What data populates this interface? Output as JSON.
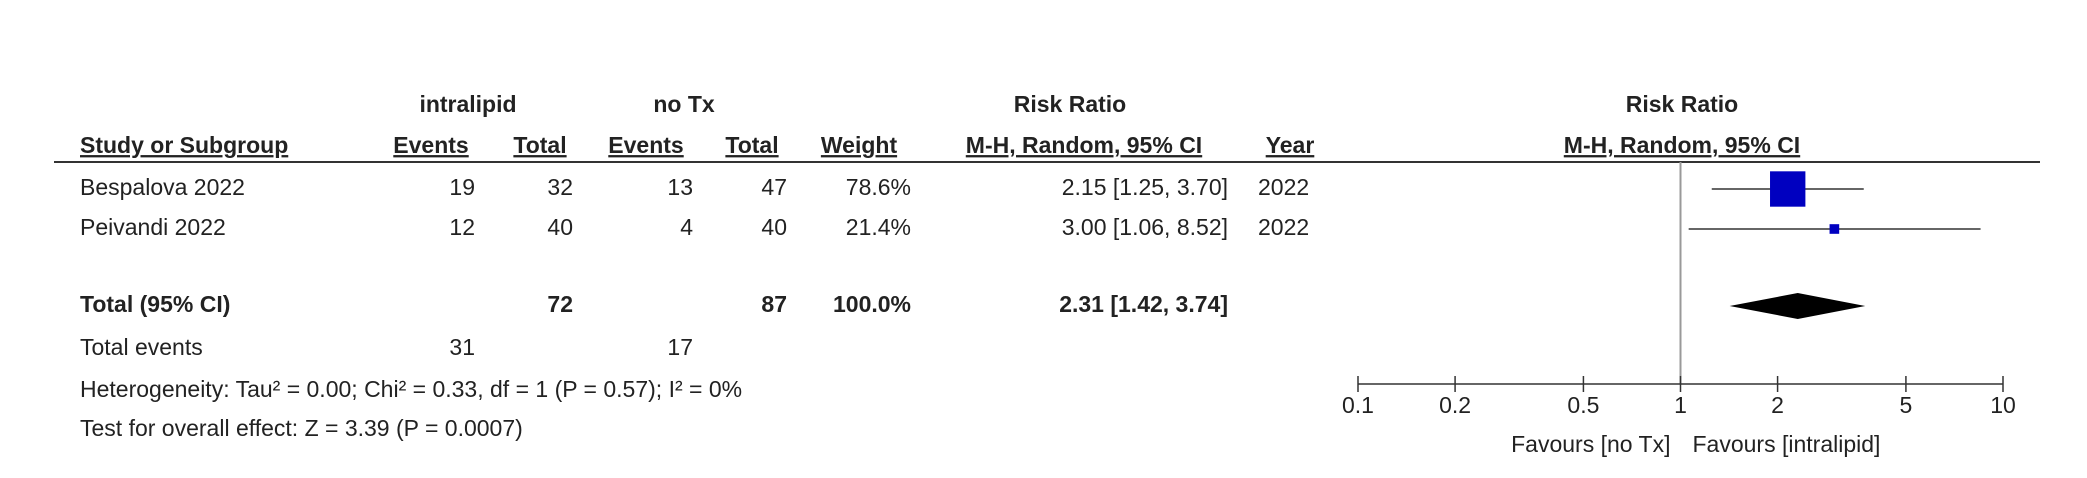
{
  "chart_data": {
    "type": "forest",
    "group_labels": [
      "intralipid",
      "no Tx"
    ],
    "measure": "Risk Ratio",
    "method": "M-H, Random, 95% CI",
    "columns": [
      "Study or Subgroup",
      "Events",
      "Total",
      "Events",
      "Total",
      "Weight",
      "M-H, Random, 95% CI",
      "Year"
    ],
    "studies": [
      {
        "name": "Bespalova 2022",
        "events1": 19,
        "total1": 32,
        "events2": 13,
        "total2": 47,
        "weight": 78.6,
        "weight_label": "78.6%",
        "rr": 2.15,
        "lower": 1.25,
        "upper": 3.7,
        "ci_label": "2.15 [1.25, 3.70]",
        "year": 2022
      },
      {
        "name": "Peivandi 2022",
        "events1": 12,
        "total1": 40,
        "events2": 4,
        "total2": 40,
        "weight": 21.4,
        "weight_label": "21.4%",
        "rr": 3.0,
        "lower": 1.06,
        "upper": 8.52,
        "ci_label": "3.00 [1.06, 8.52]",
        "year": 2022
      }
    ],
    "total": {
      "name": "Total (95% CI)",
      "total1": 72,
      "total2": 87,
      "weight": 100.0,
      "weight_label": "100.0%",
      "rr": 2.31,
      "lower": 1.42,
      "upper": 3.74,
      "ci_label": "2.31 [1.42, 3.74]"
    },
    "total_events": {
      "name": "Total events",
      "events1": 31,
      "events2": 17
    },
    "heterogeneity": "Heterogeneity: Tau² = 0.00; Chi² = 0.33, df = 1 (P = 0.57); I² = 0%",
    "overall_effect": "Test for overall effect: Z = 3.39 (P = 0.0007)",
    "favours_left": "Favours [no Tx]",
    "favours_right": "Favours [intralipid]",
    "log_scale": true,
    "xlim": [
      0.1,
      10
    ],
    "xticks": [
      0.1,
      0.2,
      0.5,
      1,
      2,
      5,
      10
    ],
    "square_color": "#0000c0",
    "diamond_color": "#000000"
  }
}
